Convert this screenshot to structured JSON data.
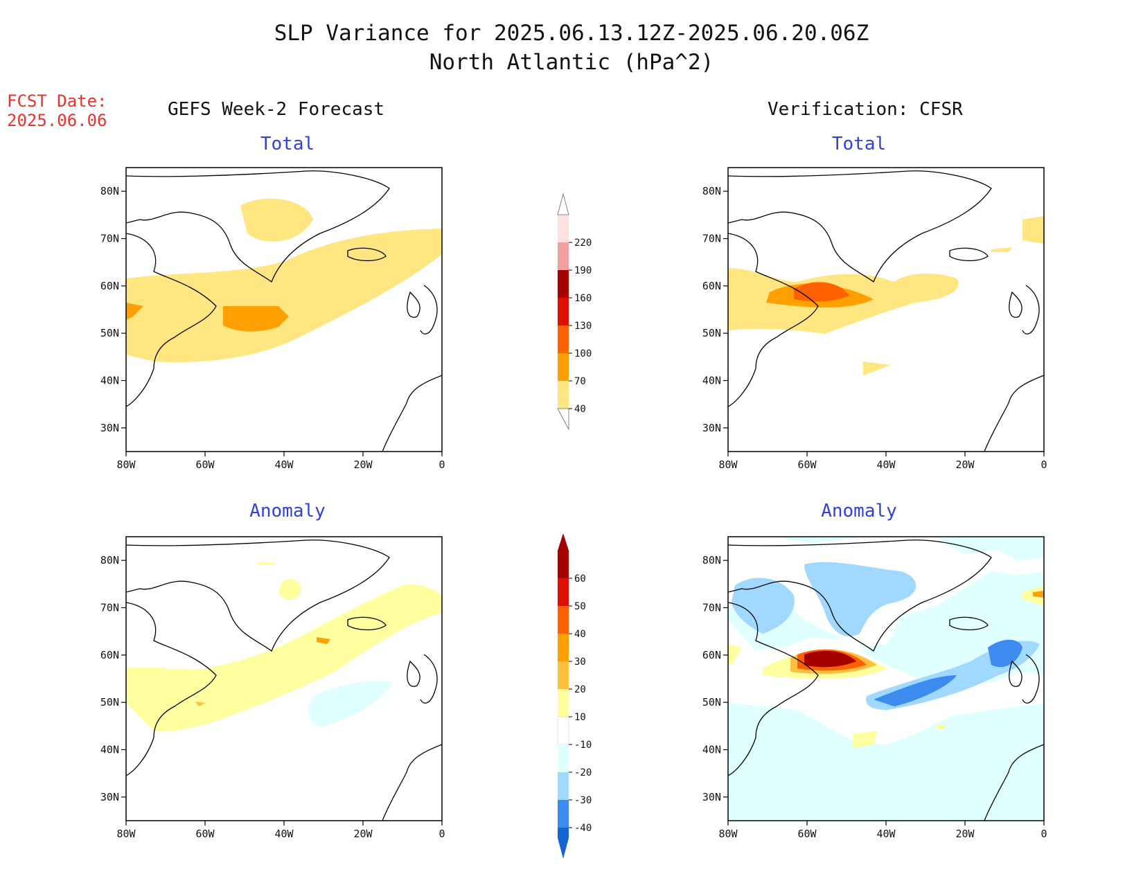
{
  "header": {
    "title_line1": "SLP Variance for 2025.06.13.12Z-2025.06.20.06Z",
    "title_line2": "North Atlantic (hPa^2)",
    "fcst_label": "FCST Date:",
    "fcst_date": "2025.06.06"
  },
  "columns": {
    "left": "GEFS Week-2 Forecast",
    "right": "Verification: CFSR"
  },
  "panels": {
    "gefs_total": {
      "title": "Total"
    },
    "cfsr_total": {
      "title": "Total"
    },
    "gefs_anomaly": {
      "title": "Anomaly"
    },
    "cfsr_anomaly": {
      "title": "Anomaly"
    }
  },
  "axes": {
    "lon_ticks": [
      "80W",
      "60W",
      "40W",
      "20W",
      "0"
    ],
    "lat_ticks": [
      "80N",
      "70N",
      "60N",
      "50N",
      "40N",
      "30N"
    ],
    "lon_values": [
      -80,
      -60,
      -40,
      -20,
      0
    ],
    "lat_values": [
      80,
      70,
      60,
      50,
      40,
      30
    ]
  },
  "colorbars": {
    "total": {
      "levels": [
        "40",
        "70",
        "100",
        "130",
        "160",
        "190",
        "220"
      ],
      "colors": [
        "#ffe680",
        "#ffa000",
        "#ff6000",
        "#e01000",
        "#a50000",
        "#f4a0a0",
        "#fde0e0"
      ]
    },
    "anomaly": {
      "levels": [
        "60",
        "50",
        "40",
        "30",
        "20",
        "10",
        "-10",
        "-20",
        "-30",
        "-40"
      ],
      "colors": [
        "#a50000",
        "#e01000",
        "#ff6000",
        "#ffa000",
        "#ffc040",
        "#ffffa0",
        "#ffffff",
        "#e0ffff",
        "#a0d8ff",
        "#3c8cf0",
        "#1464d2"
      ]
    }
  }
}
